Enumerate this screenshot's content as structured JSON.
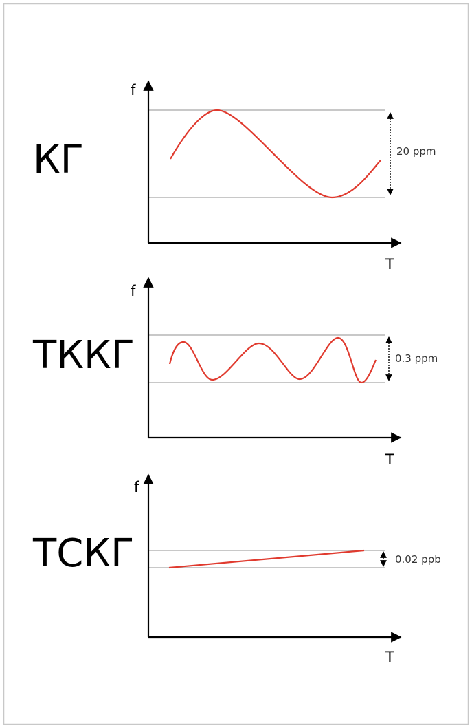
{
  "colors": {
    "curve": "#e03a2e",
    "axis": "#000000",
    "ref_line": "#a6a6a6",
    "frame": "#c8c8c8",
    "text": "#000000"
  },
  "panels": [
    {
      "label": "КГ",
      "y_axis": "f",
      "x_axis": "T",
      "amplitude": "20 ppm",
      "curve_shape": "sine-one-period"
    },
    {
      "label": "ТККГ",
      "y_axis": "f",
      "x_axis": "T",
      "amplitude": "0.3 ppm",
      "curve_shape": "multi-wave"
    },
    {
      "label": "ТСКГ",
      "y_axis": "f",
      "x_axis": "T",
      "amplitude": "0.02 ppb",
      "curve_shape": "linear-drift"
    }
  ]
}
